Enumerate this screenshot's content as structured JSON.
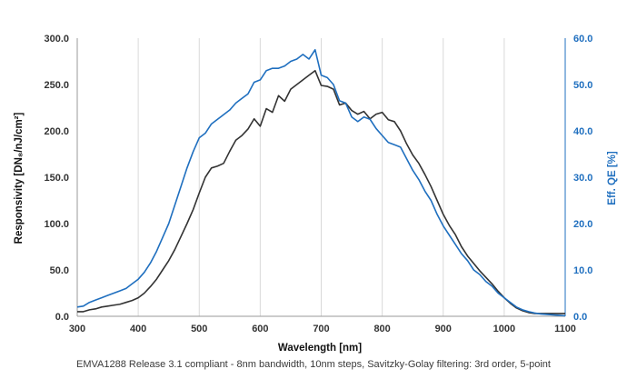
{
  "chart_data": {
    "type": "line",
    "xlabel": "Wavelength [nm]",
    "ylabel": "Responsivity [DN₈/nJ/cm²]",
    "y2label": "Eff. QE [%]",
    "xlim": [
      300,
      1100
    ],
    "ylim": [
      0,
      300
    ],
    "y2lim": [
      0,
      60
    ],
    "x_ticks": [
      "300",
      "400",
      "500",
      "600",
      "700",
      "800",
      "900",
      "1000",
      "1100"
    ],
    "y_ticks": [
      "0.0",
      "50.0",
      "100.0",
      "150.0",
      "200.0",
      "250.0",
      "300.0"
    ],
    "y2_ticks": [
      "0.0",
      "10.0",
      "20.0",
      "30.0",
      "40.0",
      "50.0",
      "60.0"
    ],
    "grid": "vertical",
    "caption": "EMVA1288 Release 3.1 compliant - 8nm bandwidth, 10nm steps, Savitzky-Golay filtering: 3rd order, 5-point",
    "series": [
      {
        "axis": "left",
        "color": "#333333",
        "x": [
          300,
          310,
          320,
          330,
          340,
          350,
          360,
          370,
          380,
          390,
          400,
          410,
          420,
          430,
          440,
          450,
          460,
          470,
          480,
          490,
          500,
          510,
          520,
          530,
          540,
          550,
          560,
          570,
          580,
          590,
          600,
          610,
          620,
          630,
          640,
          650,
          660,
          670,
          680,
          690,
          700,
          710,
          720,
          730,
          740,
          750,
          760,
          770,
          780,
          790,
          800,
          810,
          820,
          830,
          840,
          850,
          860,
          870,
          880,
          890,
          900,
          910,
          920,
          930,
          940,
          950,
          960,
          970,
          980,
          990,
          1000,
          1010,
          1020,
          1030,
          1040,
          1050,
          1060,
          1070,
          1080,
          1090,
          1100
        ],
        "values": [
          5,
          5,
          7,
          8,
          10,
          11,
          12,
          13,
          15,
          17,
          20,
          25,
          32,
          40,
          50,
          60,
          72,
          86,
          100,
          115,
          133,
          150,
          160,
          162,
          165,
          178,
          190,
          195,
          202,
          213,
          205,
          224,
          220,
          238,
          232,
          245,
          250,
          255,
          260,
          265,
          249,
          248,
          245,
          228,
          230,
          222,
          218,
          221,
          213,
          218,
          220,
          212,
          210,
          200,
          186,
          174,
          165,
          153,
          140,
          125,
          110,
          98,
          88,
          75,
          65,
          57,
          49,
          42,
          35,
          27,
          20,
          14,
          9,
          6,
          4,
          3,
          3,
          3,
          3,
          3,
          3
        ]
      },
      {
        "axis": "right",
        "color": "#1f6fbf",
        "x": [
          300,
          310,
          320,
          330,
          340,
          350,
          360,
          370,
          380,
          390,
          400,
          410,
          420,
          430,
          440,
          450,
          460,
          470,
          480,
          490,
          500,
          510,
          520,
          530,
          540,
          550,
          560,
          570,
          580,
          590,
          600,
          610,
          620,
          630,
          640,
          650,
          660,
          670,
          680,
          690,
          700,
          710,
          720,
          730,
          740,
          750,
          760,
          770,
          780,
          790,
          800,
          810,
          820,
          830,
          840,
          850,
          860,
          870,
          880,
          890,
          900,
          910,
          920,
          930,
          940,
          950,
          960,
          970,
          980,
          990,
          1000,
          1010,
          1020,
          1030,
          1040,
          1050,
          1060,
          1070,
          1080,
          1090,
          1100
        ],
        "values": [
          2.0,
          2.2,
          3.0,
          3.5,
          4.0,
          4.5,
          5.0,
          5.5,
          6.0,
          7.0,
          8.0,
          9.5,
          11.5,
          14.0,
          17.0,
          20.0,
          24.0,
          28.0,
          32.0,
          35.5,
          38.5,
          39.5,
          41.5,
          42.5,
          43.5,
          44.5,
          46.0,
          47.0,
          48.0,
          50.5,
          51.0,
          53.0,
          53.5,
          53.5,
          54.0,
          55.0,
          55.5,
          56.5,
          55.5,
          57.5,
          52.0,
          51.5,
          50.0,
          46.5,
          46.0,
          43.0,
          42.0,
          43.0,
          42.5,
          40.5,
          39.0,
          37.5,
          37.0,
          36.5,
          34.0,
          31.5,
          29.5,
          27.0,
          25.0,
          22.0,
          19.5,
          17.5,
          15.5,
          13.5,
          12.0,
          10.0,
          9.0,
          7.5,
          6.5,
          5.0,
          4.0,
          3.0,
          2.0,
          1.4,
          1.0,
          0.7,
          0.5,
          0.4,
          0.3,
          0.2,
          0.1
        ]
      }
    ]
  }
}
